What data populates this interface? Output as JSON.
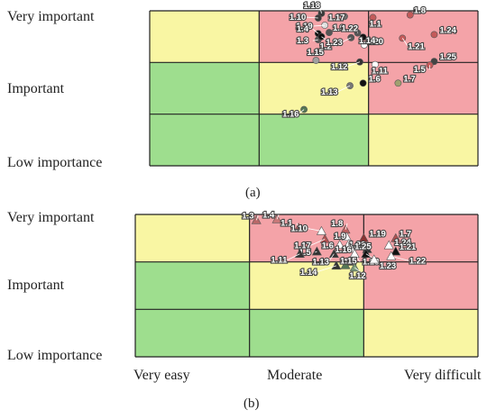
{
  "colors": {
    "red": "#f4a3a8",
    "yellow": "#f9f6a3",
    "green": "#9ede8e"
  },
  "rows": [
    "Very important",
    "Important",
    "Low importance"
  ],
  "cols": [
    "Very easy",
    "Moderate",
    "Very difficult"
  ],
  "chart_data": [
    {
      "type": "scatter",
      "caption": "(a)",
      "grid": [
        [
          "yellow",
          "red",
          "red"
        ],
        [
          "green",
          "yellow",
          "red"
        ],
        [
          "green",
          "green",
          "yellow"
        ]
      ],
      "points": [
        {
          "label": "1.18",
          "x": 1.57,
          "y": 2.95,
          "c": "#3a3a3a",
          "lx": -20,
          "ly": -6
        },
        {
          "label": "1.10",
          "x": 1.54,
          "y": 2.86,
          "c": "#3a3a3a",
          "lx": -32,
          "ly": 2
        },
        {
          "label": "1.17",
          "x": 1.78,
          "y": 2.89,
          "c": "#6a6a6a",
          "lx": -18,
          "ly": 4
        },
        {
          "label": "1.1",
          "x": 2.04,
          "y": 2.87,
          "c": "#c45a5a",
          "lx": -4,
          "ly": 10
        },
        {
          "label": "1.8",
          "x": 2.38,
          "y": 2.92,
          "c": "#c45a5a",
          "lx": 4,
          "ly": -2
        },
        {
          "label": "1.19",
          "x": 1.6,
          "y": 2.72,
          "c": "#dddddd",
          "lx": -32,
          "ly": 4
        },
        {
          "label": "1.4",
          "x": 1.54,
          "y": 2.56,
          "c": "#111111",
          "lx": -24,
          "ly": -2
        },
        {
          "label": "1.9",
          "x": 1.64,
          "y": 2.58,
          "c": "#555555",
          "lx": 4,
          "ly": -2
        },
        {
          "label": "1.22",
          "x": 1.9,
          "y": 2.57,
          "c": "#555555",
          "lx": -18,
          "ly": -2
        },
        {
          "label": "1.20",
          "x": 1.95,
          "y": 2.49,
          "c": "#111111",
          "lx": 4,
          "ly": 8
        },
        {
          "label": "1.24",
          "x": 2.6,
          "y": 2.54,
          "c": "#c45a5a",
          "lx": 6,
          "ly": -2
        },
        {
          "label": "1.21",
          "x": 2.31,
          "y": 2.47,
          "c": "#c45a5a",
          "lx": 6,
          "ly": 12
        },
        {
          "label": "1.3",
          "x": 1.54,
          "y": 2.44,
          "c": "#555555",
          "lx": -24,
          "ly": 4
        },
        {
          "label": "1.2",
          "x": 1.57,
          "y": 2.5,
          "c": "#111111",
          "lx": -2,
          "ly": 14
        },
        {
          "label": "1.23",
          "x": 1.84,
          "y": 2.48,
          "c": "#555555",
          "lx": -28,
          "ly": 8
        },
        {
          "label": "1.14",
          "x": 1.96,
          "y": 2.34,
          "c": "#ffffff",
          "lx": -6,
          "ly": -2
        },
        {
          "label": "1.15",
          "x": 1.52,
          "y": 2.04,
          "c": "#a0a0a0",
          "lx": -10,
          "ly": -6
        },
        {
          "label": "1.12",
          "x": 1.92,
          "y": 2.01,
          "c": "#333333",
          "lx": -32,
          "ly": 8
        },
        {
          "label": "1.11",
          "x": 2.06,
          "y": 1.96,
          "c": "#ffffff",
          "lx": -4,
          "ly": 10
        },
        {
          "label": "1.25",
          "x": 2.6,
          "y": 2.02,
          "c": "#444444",
          "lx": 6,
          "ly": -2
        },
        {
          "label": "1.5",
          "x": 2.56,
          "y": 1.95,
          "c": "#c45a5a",
          "lx": -18,
          "ly": 8
        },
        {
          "label": "1.6",
          "x": 1.95,
          "y": 1.6,
          "c": "#111111",
          "lx": 6,
          "ly": -2
        },
        {
          "label": "1.7",
          "x": 2.27,
          "y": 1.6,
          "c": "#a0a070",
          "lx": 6,
          "ly": -2
        },
        {
          "label": "1.13",
          "x": 1.83,
          "y": 1.55,
          "c": "#777777",
          "lx": -32,
          "ly": 10
        },
        {
          "label": "1.16",
          "x": 1.41,
          "y": 1.09,
          "c": "#557755",
          "lx": -24,
          "ly": 8
        }
      ]
    },
    {
      "type": "scatter",
      "caption": "(b)",
      "grid": [
        [
          "yellow",
          "red",
          "red"
        ],
        [
          "green",
          "yellow",
          "red"
        ],
        [
          "green",
          "green",
          "yellow"
        ]
      ],
      "points": [
        {
          "label": "1.3",
          "x": 1.06,
          "y": 2.88,
          "c": "#b86868",
          "lx": -16,
          "ly": -2
        },
        {
          "label": "1.4",
          "x": 1.24,
          "y": 2.9,
          "c": "#c87878",
          "lx": -16,
          "ly": -2
        },
        {
          "label": "1.1",
          "x": 1.43,
          "y": 2.72,
          "c": "#b86868",
          "lx": -20,
          "ly": -2
        },
        {
          "label": "1.10",
          "x": 1.63,
          "y": 2.65,
          "c": "#ffffff",
          "lx": -34,
          "ly": 0
        },
        {
          "label": "1.8",
          "x": 1.84,
          "y": 2.68,
          "c": "#c06060",
          "lx": -16,
          "ly": -4
        },
        {
          "label": "1.17",
          "x": 1.66,
          "y": 2.48,
          "c": "#b05050",
          "lx": -34,
          "ly": 10
        },
        {
          "label": "1.9",
          "x": 1.85,
          "y": 2.53,
          "c": "#ffffff",
          "lx": -14,
          "ly": 2
        },
        {
          "label": "1.19",
          "x": 2.0,
          "y": 2.5,
          "c": "#883333",
          "lx": 6,
          "ly": -2
        },
        {
          "label": "1.7",
          "x": 2.28,
          "y": 2.5,
          "c": "#b05050",
          "lx": 4,
          "ly": -2
        },
        {
          "label": "1.24",
          "x": 2.22,
          "y": 2.35,
          "c": "#ffffff",
          "lx": 6,
          "ly": 0
        },
        {
          "label": "1.6",
          "x": 1.79,
          "y": 2.36,
          "c": "#ffffff",
          "lx": -20,
          "ly": 4
        },
        {
          "label": "1.20",
          "x": 1.87,
          "y": 2.38,
          "c": "#ffffff",
          "lx": 0,
          "ly": 4
        },
        {
          "label": "1.5",
          "x": 1.59,
          "y": 2.22,
          "c": "#333333",
          "lx": -20,
          "ly": 4
        },
        {
          "label": "1.16",
          "x": 1.89,
          "y": 2.28,
          "c": "#ffffff",
          "lx": -18,
          "ly": 4
        },
        {
          "label": "1.25",
          "x": 2.03,
          "y": 2.27,
          "c": "#333333",
          "lx": -14,
          "ly": 0
        },
        {
          "label": "1.21",
          "x": 2.28,
          "y": 2.22,
          "c": "#111111",
          "lx": 4,
          "ly": -2
        },
        {
          "label": "1.11",
          "x": 1.44,
          "y": 2.17,
          "c": "#333333",
          "lx": -32,
          "ly": 10
        },
        {
          "label": "1.13",
          "x": 1.74,
          "y": 2.17,
          "c": "#333333",
          "lx": -24,
          "ly": 12
        },
        {
          "label": "1.2",
          "x": 1.92,
          "y": 2.17,
          "c": "#ffffff",
          "lx": -12,
          "ly": 12
        },
        {
          "label": "1.18",
          "x": 2.02,
          "y": 2.17,
          "c": "#111111",
          "lx": -4,
          "ly": 12
        },
        {
          "label": "1.22",
          "x": 2.24,
          "y": 2.12,
          "c": "#ffffff",
          "lx": 20,
          "ly": 8
        },
        {
          "label": "1.23",
          "x": 2.09,
          "y": 2.05,
          "c": "#ffffff",
          "lx": 6,
          "ly": 10
        },
        {
          "label": "1.14",
          "x": 1.76,
          "y": 1.92,
          "c": "#333333",
          "lx": -40,
          "ly": 10
        },
        {
          "label": "1.15",
          "x": 1.84,
          "y": 1.93,
          "c": "#557755",
          "lx": -6,
          "ly": -2
        },
        {
          "label": "1.12",
          "x": 1.92,
          "y": 1.88,
          "c": "#779977",
          "lx": -6,
          "ly": 12
        }
      ]
    }
  ]
}
